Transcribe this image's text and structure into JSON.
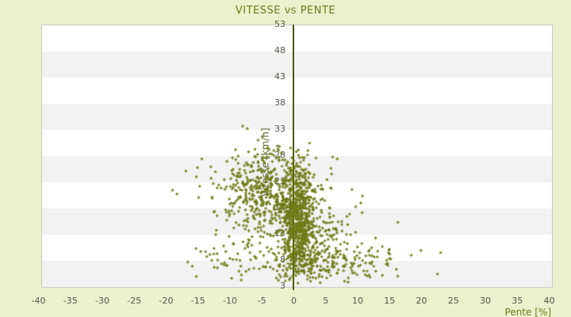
{
  "title": "VITESSE vs PENTE",
  "colors": {
    "background": "#ebf0cd",
    "plot_background": "#ffffff",
    "band": "#f2f2f2",
    "plot_border": "#c9c9c9",
    "zero_axis_line": "#4c5a08",
    "point": "#6d7a16",
    "tick_text": "#55584a",
    "title_text": "#6c7c1d",
    "axis_label_text": "#5e6430"
  },
  "chart_data": {
    "type": "scatter",
    "title": "VITESSE vs PENTE",
    "xlabel": "Pente [%]",
    "ylabel": "Vitesse [km/h]",
    "xlim": [
      -40,
      40
    ],
    "ylim": [
      3,
      53
    ],
    "x_ticks": [
      -40,
      -35,
      -30,
      -25,
      -20,
      -15,
      -10,
      -5,
      0,
      5,
      10,
      15,
      20,
      25,
      30,
      35,
      40
    ],
    "y_ticks": [
      3,
      8,
      13,
      18,
      23,
      28,
      33,
      38,
      43,
      48,
      53
    ],
    "grid": "horizontal-alternating-bands",
    "band_step_units": 5,
    "legend": "none",
    "marker": "diamond",
    "marker_size_px": 3,
    "seed": 1337,
    "point_total_approx": 1575,
    "clusters": [
      {
        "name": "dense-core-near-zero-slope",
        "n": 620,
        "p": [
          0.6,
          1.3,
          -2.5,
          3.5
        ],
        "v": [
          15.5,
          5.2,
          4.5,
          28.5
        ]
      },
      {
        "name": "mid-cloud",
        "n": 330,
        "p": [
          -2.0,
          3.8,
          -13.0,
          6.0
        ],
        "v": [
          18.0,
          4.5,
          6.0,
          29.0
        ]
      },
      {
        "name": "left-wing-upper",
        "n": 200,
        "p": [
          -6.5,
          3.2,
          -16.0,
          -0.5
        ],
        "v": [
          22.0,
          3.2,
          13.0,
          30.0
        ]
      },
      {
        "name": "right-mid",
        "n": 130,
        "p": [
          4.5,
          2.8,
          0.5,
          13.0
        ],
        "v": [
          12.5,
          3.8,
          5.0,
          23.0
        ]
      },
      {
        "name": "bottom-low-speed-band",
        "n": 170,
        "p": [
          2.0,
          4.8,
          -9.0,
          17.0
        ],
        "v": [
          7.0,
          1.7,
          3.5,
          11.0
        ]
      },
      {
        "name": "right-low-tail",
        "n": 45,
        "p": [
          11.0,
          3.5,
          5.0,
          21.0
        ],
        "v": [
          8.0,
          2.0,
          4.0,
          12.0
        ]
      },
      {
        "name": "left-low-sparse",
        "n": 28,
        "p": [
          -10.5,
          3.0,
          -17.0,
          -4.0
        ],
        "v": [
          8.0,
          2.5,
          4.0,
          13.0
        ]
      },
      {
        "name": "top-scatter",
        "n": 30,
        "p": [
          -3.0,
          2.8,
          -9.0,
          2.5
        ],
        "v": [
          27.5,
          1.6,
          25.5,
          31.5
        ]
      }
    ],
    "outlier_points": [
      [
        -19.0,
        21.3
      ],
      [
        -18.3,
        20.6
      ],
      [
        -16.9,
        25.0
      ],
      [
        -16.6,
        7.6
      ],
      [
        -15.9,
        6.8
      ],
      [
        -14.4,
        27.3
      ],
      [
        -13.0,
        25.8
      ],
      [
        -12.5,
        10.2
      ],
      [
        -8.0,
        33.6
      ],
      [
        -7.3,
        33.1
      ],
      [
        -5.6,
        30.9
      ],
      [
        -4.9,
        31.6
      ],
      [
        -0.5,
        29.4
      ],
      [
        2.2,
        28.9
      ],
      [
        6.1,
        27.7
      ],
      [
        6.8,
        27.3
      ],
      [
        10.5,
        18.9
      ],
      [
        12.8,
        12.2
      ],
      [
        14.9,
        9.9
      ],
      [
        16.3,
        15.2
      ],
      [
        18.4,
        8.9
      ],
      [
        19.9,
        9.8
      ],
      [
        22.5,
        5.3
      ],
      [
        23.0,
        9.4
      ]
    ]
  }
}
